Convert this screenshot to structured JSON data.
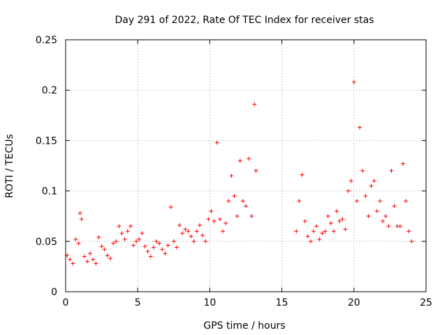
{
  "chart_data": {
    "type": "scatter",
    "title": "Day 291 of 2022, Rate Of TEC Index for receiver stas",
    "xlabel": "GPS time / hours",
    "ylabel": "ROTI / TECUs",
    "xlim": [
      0,
      25
    ],
    "ylim": [
      0,
      0.25
    ],
    "x_ticks": [
      0,
      5,
      10,
      15,
      20,
      25
    ],
    "x_tick_labels": [
      "0",
      "5",
      "10",
      "15",
      "20",
      "25"
    ],
    "y_ticks": [
      0,
      0.05,
      0.1,
      0.15,
      0.2,
      0.25
    ],
    "y_tick_labels": [
      "0",
      "0.05",
      "0.1",
      "0.15",
      "0.2",
      "0.25"
    ],
    "grid": true,
    "marker": "plus",
    "color": "#ff0000",
    "series": [
      {
        "x": [
          0.1,
          0.3,
          0.5,
          0.7,
          0.9,
          1.0,
          1.1,
          1.3,
          1.5,
          1.7,
          1.9,
          2.1,
          2.3,
          2.5,
          2.7,
          2.9,
          3.1,
          3.3,
          3.5,
          3.7,
          3.9,
          4.1,
          4.3,
          4.5,
          4.7,
          4.9,
          5.1,
          5.3,
          5.5,
          5.7,
          5.9,
          6.1,
          6.3,
          6.5,
          6.7,
          6.9,
          7.1,
          7.3,
          7.5,
          7.7,
          7.9,
          8.1,
          8.3,
          8.5,
          8.7,
          8.9,
          9.1,
          9.3,
          9.5,
          9.7,
          9.9,
          10.1,
          10.3,
          10.5,
          10.7,
          10.9,
          11.1,
          11.3,
          11.5,
          11.7,
          11.9,
          12.1,
          12.3,
          12.5,
          12.7,
          12.9,
          13.1,
          13.2,
          16.0,
          16.2,
          16.4,
          16.6,
          16.8,
          17.0,
          17.2,
          17.4,
          17.6,
          17.8,
          18.0,
          18.2,
          18.4,
          18.6,
          18.8,
          19.0,
          19.2,
          19.4,
          19.6,
          19.8,
          20.0,
          20.2,
          20.4,
          20.6,
          20.8,
          21.0,
          21.2,
          21.4,
          21.6,
          21.8,
          22.0,
          22.2,
          22.4,
          22.6,
          22.8,
          23.0,
          23.2,
          23.4,
          23.6,
          23.8,
          24.0
        ],
        "y": [
          0.036,
          0.032,
          0.028,
          0.052,
          0.048,
          0.078,
          0.072,
          0.035,
          0.03,
          0.038,
          0.032,
          0.028,
          0.054,
          0.045,
          0.042,
          0.036,
          0.033,
          0.048,
          0.05,
          0.065,
          0.058,
          0.052,
          0.06,
          0.065,
          0.046,
          0.05,
          0.052,
          0.058,
          0.045,
          0.04,
          0.035,
          0.044,
          0.05,
          0.048,
          0.042,
          0.038,
          0.046,
          0.084,
          0.05,
          0.044,
          0.066,
          0.058,
          0.062,
          0.06,
          0.055,
          0.05,
          0.06,
          0.066,
          0.056,
          0.05,
          0.072,
          0.08,
          0.07,
          0.148,
          0.072,
          0.06,
          0.068,
          0.09,
          0.115,
          0.095,
          0.075,
          0.13,
          0.09,
          0.085,
          0.132,
          0.075,
          0.186,
          0.12,
          0.06,
          0.09,
          0.116,
          0.07,
          0.055,
          0.05,
          0.06,
          0.065,
          0.052,
          0.058,
          0.06,
          0.075,
          0.068,
          0.06,
          0.08,
          0.07,
          0.072,
          0.062,
          0.1,
          0.11,
          0.208,
          0.09,
          0.163,
          0.12,
          0.095,
          0.075,
          0.105,
          0.11,
          0.08,
          0.09,
          0.07,
          0.075,
          0.065,
          0.12,
          0.085,
          0.065,
          0.065,
          0.127,
          0.09,
          0.06,
          0.05
        ]
      }
    ]
  }
}
